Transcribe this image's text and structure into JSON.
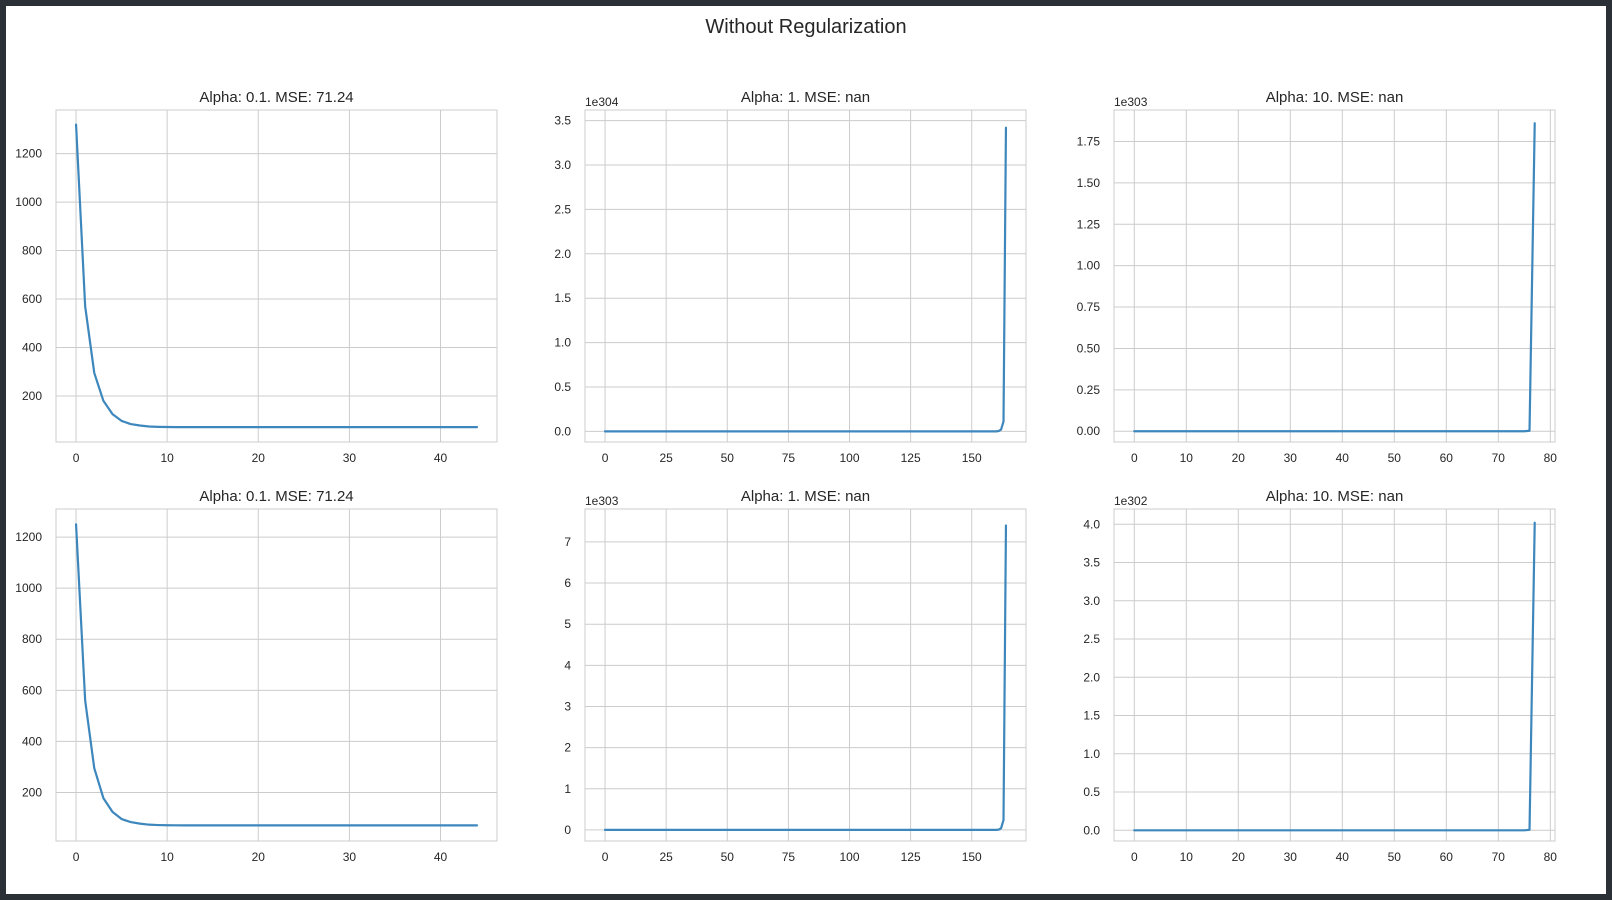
{
  "figure": {
    "suptitle": "Without Regularization"
  },
  "colors": {
    "line": "#3d87bd",
    "grid": "#cccccc",
    "frame": "#cccccc",
    "background": "#ffffff"
  },
  "chart_data": [
    {
      "type": "line",
      "title": "Alpha: 0.1. MSE: 71.24",
      "xlim": [
        -2.2,
        46.2
      ],
      "ylim": [
        10,
        1380
      ],
      "xticks": [
        0,
        10,
        20,
        30,
        40
      ],
      "xtick_labels": [
        "0",
        "10",
        "20",
        "30",
        "40"
      ],
      "yticks": [
        200,
        400,
        600,
        800,
        1000,
        1200
      ],
      "ytick_labels": [
        "200",
        "400",
        "600",
        "800",
        "1000",
        "1200"
      ],
      "y_offset_text": "",
      "grid": true,
      "series": [
        {
          "x": [
            0,
            1,
            2,
            3,
            4,
            5,
            6,
            7,
            8,
            9,
            10,
            11,
            12,
            13,
            14,
            15,
            20,
            25,
            30,
            35,
            40,
            44
          ],
          "y": [
            1320,
            570,
            295,
            180,
            125,
            97,
            84,
            78,
            74,
            72.5,
            71.8,
            71.5,
            71.3,
            71.25,
            71.24,
            71.24,
            71.24,
            71.24,
            71.24,
            71.24,
            71.24,
            71.24
          ]
        }
      ]
    },
    {
      "type": "line",
      "title": "Alpha: 1. MSE: nan",
      "xlim": [
        -8.2,
        172.2
      ],
      "ylim": [
        -0.12,
        3.62
      ],
      "xticks": [
        0,
        25,
        50,
        75,
        100,
        125,
        150
      ],
      "xtick_labels": [
        "0",
        "25",
        "50",
        "75",
        "100",
        "125",
        "150"
      ],
      "yticks": [
        0,
        0.5,
        1.0,
        1.5,
        2.0,
        2.5,
        3.0,
        3.5
      ],
      "ytick_labels": [
        "0.0",
        "0.5",
        "1.0",
        "1.5",
        "2.0",
        "2.5",
        "3.0",
        "3.5"
      ],
      "y_offset_text": "1e304",
      "grid": true,
      "series": [
        {
          "x": [
            0,
            150,
            160,
            161,
            162,
            163,
            164
          ],
          "y": [
            0,
            0,
            0,
            0.003,
            0.02,
            0.11,
            3.42
          ]
        }
      ]
    },
    {
      "type": "line",
      "title": "Alpha: 10. MSE: nan",
      "xlim": [
        -3.9,
        80.9
      ],
      "ylim": [
        -0.065,
        1.94
      ],
      "xticks": [
        0,
        10,
        20,
        30,
        40,
        50,
        60,
        70,
        80
      ],
      "xtick_labels": [
        "0",
        "10",
        "20",
        "30",
        "40",
        "50",
        "60",
        "70",
        "80"
      ],
      "yticks": [
        0,
        0.25,
        0.5,
        0.75,
        1.0,
        1.25,
        1.5,
        1.75
      ],
      "ytick_labels": [
        "0.00",
        "0.25",
        "0.50",
        "0.75",
        "1.00",
        "1.25",
        "1.50",
        "1.75"
      ],
      "y_offset_text": "1e303",
      "grid": true,
      "series": [
        {
          "x": [
            0,
            70,
            75,
            76,
            77
          ],
          "y": [
            0,
            0,
            0,
            0.003,
            1.86
          ]
        }
      ]
    },
    {
      "type": "line",
      "title": "Alpha: 0.1. MSE: 71.24",
      "xlim": [
        -2.2,
        46.2
      ],
      "ylim": [
        10,
        1310
      ],
      "xticks": [
        0,
        10,
        20,
        30,
        40
      ],
      "xtick_labels": [
        "0",
        "10",
        "20",
        "30",
        "40"
      ],
      "yticks": [
        200,
        400,
        600,
        800,
        1000,
        1200
      ],
      "ytick_labels": [
        "200",
        "400",
        "600",
        "800",
        "1000",
        "1200"
      ],
      "y_offset_text": "",
      "grid": true,
      "series": [
        {
          "x": [
            0,
            1,
            2,
            3,
            4,
            5,
            6,
            7,
            8,
            9,
            10,
            11,
            12,
            13,
            14,
            15,
            20,
            25,
            30,
            35,
            40,
            44
          ],
          "y": [
            1250,
            560,
            295,
            178,
            124,
            96,
            84,
            78,
            74,
            72.5,
            71.8,
            71.5,
            71.3,
            71.25,
            71.24,
            71.24,
            71.24,
            71.24,
            71.24,
            71.24,
            71.24,
            71.24
          ]
        }
      ]
    },
    {
      "type": "line",
      "title": "Alpha: 1. MSE: nan",
      "xlim": [
        -8.2,
        172.2
      ],
      "ylim": [
        -0.27,
        7.8
      ],
      "xticks": [
        0,
        25,
        50,
        75,
        100,
        125,
        150
      ],
      "xtick_labels": [
        "0",
        "25",
        "50",
        "75",
        "100",
        "125",
        "150"
      ],
      "yticks": [
        0,
        1,
        2,
        3,
        4,
        5,
        6,
        7
      ],
      "ytick_labels": [
        "0",
        "1",
        "2",
        "3",
        "4",
        "5",
        "6",
        "7"
      ],
      "y_offset_text": "1e303",
      "grid": true,
      "series": [
        {
          "x": [
            0,
            150,
            160,
            161,
            162,
            163,
            164
          ],
          "y": [
            0,
            0,
            0,
            0.006,
            0.04,
            0.24,
            7.4
          ]
        }
      ]
    },
    {
      "type": "line",
      "title": "Alpha: 10. MSE: nan",
      "xlim": [
        -3.9,
        80.9
      ],
      "ylim": [
        -0.14,
        4.2
      ],
      "xticks": [
        0,
        10,
        20,
        30,
        40,
        50,
        60,
        70,
        80
      ],
      "xtick_labels": [
        "0",
        "10",
        "20",
        "30",
        "40",
        "50",
        "60",
        "70",
        "80"
      ],
      "yticks": [
        0,
        0.5,
        1.0,
        1.5,
        2.0,
        2.5,
        3.0,
        3.5,
        4.0
      ],
      "ytick_labels": [
        "0.0",
        "0.5",
        "1.0",
        "1.5",
        "2.0",
        "2.5",
        "3.0",
        "3.5",
        "4.0"
      ],
      "y_offset_text": "1e302",
      "grid": true,
      "series": [
        {
          "x": [
            0,
            70,
            75,
            76,
            77
          ],
          "y": [
            0,
            0,
            0,
            0.006,
            4.02
          ]
        }
      ]
    }
  ]
}
